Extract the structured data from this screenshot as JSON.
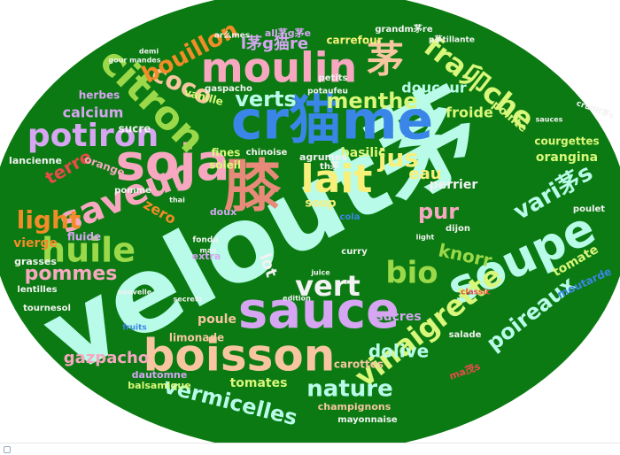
{
  "background_color": "#0b7a12",
  "palette": {
    "mint": "#b9fbe9",
    "pink": "#f7a8c0",
    "lilac": "#d6a6f2",
    "blue": "#3a86e8",
    "green": "#9bd94a",
    "lime": "#d9f77a",
    "orange": "#f28c28",
    "yellow": "#f7f07a",
    "red": "#e84b4b",
    "peach": "#f7c6a0",
    "white": "#f2f2f2",
    "salmon": "#e88a7a"
  },
  "words": [
    {
      "text": "velout茅",
      "color": "mint"
    },
    {
      "text": "cr猫me",
      "color": "blue"
    },
    {
      "text": "soja",
      "color": "pink"
    },
    {
      "text": "膝",
      "color": "salmon"
    },
    {
      "text": "sauce",
      "color": "lilac"
    },
    {
      "text": "soupe",
      "color": "mint"
    },
    {
      "text": "boisson",
      "color": "peach"
    },
    {
      "text": "moulin",
      "color": "pink"
    },
    {
      "text": "茅",
      "color": "peach"
    },
    {
      "text": "citron",
      "color": "green"
    },
    {
      "text": "saveur",
      "color": "pink"
    },
    {
      "text": "lait",
      "color": "yellow"
    },
    {
      "text": "vinaigrette",
      "color": "lime"
    },
    {
      "text": "huile",
      "color": "green"
    },
    {
      "text": "potiron",
      "color": "lilac"
    },
    {
      "text": "bio",
      "color": "green"
    },
    {
      "text": "vert",
      "color": "white"
    },
    {
      "text": "nature",
      "color": "mint"
    },
    {
      "text": "light",
      "color": "orange"
    },
    {
      "text": "fra卯che",
      "color": "lime"
    },
    {
      "text": "coco",
      "color": "peach"
    },
    {
      "text": "bouillon",
      "color": "orange"
    },
    {
      "text": "verts",
      "color": "mint"
    },
    {
      "text": "poireaux",
      "color": "mint"
    },
    {
      "text": "vermicelles",
      "color": "mint"
    },
    {
      "text": "menthe",
      "color": "lime"
    },
    {
      "text": "jus",
      "color": "yellow"
    },
    {
      "text": "pur",
      "color": "pink"
    },
    {
      "text": "vari茅s",
      "color": "mint"
    },
    {
      "text": "pommes",
      "color": "pink"
    },
    {
      "text": "gazpacho",
      "color": "pink"
    },
    {
      "text": "dolive",
      "color": "mint"
    },
    {
      "text": "knorr",
      "color": "green"
    },
    {
      "text": "terre",
      "color": "red"
    },
    {
      "text": "zero",
      "color": "orange"
    },
    {
      "text": "l茅g猫re",
      "color": "lilac"
    },
    {
      "text": "calcium",
      "color": "lilac"
    },
    {
      "text": "lot",
      "color": "white"
    },
    {
      "text": "eau",
      "color": "yellow"
    },
    {
      "text": "douceur",
      "color": "mint"
    },
    {
      "text": "froide",
      "color": "lime"
    },
    {
      "text": "courgettes",
      "color": "lime"
    },
    {
      "text": "orangina",
      "color": "lime"
    },
    {
      "text": "tomate",
      "color": "lime"
    },
    {
      "text": "tomates",
      "color": "lime"
    },
    {
      "text": "carrefour",
      "color": "yellow"
    },
    {
      "text": "moutarde",
      "color": "blue"
    },
    {
      "text": "perrier",
      "color": "white"
    },
    {
      "text": "poule",
      "color": "peach"
    },
    {
      "text": "limonade",
      "color": "peach"
    },
    {
      "text": "champignons",
      "color": "peach"
    },
    {
      "text": "soup",
      "color": "yellow"
    },
    {
      "text": "basilic",
      "color": "lime"
    },
    {
      "text": "soleil",
      "color": "lime"
    },
    {
      "text": "fines",
      "color": "lime"
    },
    {
      "text": "orange",
      "color": "pink"
    },
    {
      "text": "vierge",
      "color": "orange"
    },
    {
      "text": "sucres",
      "color": "lilac"
    },
    {
      "text": "carottes",
      "color": "peach"
    },
    {
      "text": "pointe",
      "color": "lime"
    },
    {
      "text": "vanille",
      "color": "lime"
    },
    {
      "text": "sucre",
      "color": "white"
    },
    {
      "text": "herbes",
      "color": "lilac"
    },
    {
      "text": "lancienne",
      "color": "white"
    },
    {
      "text": "fluide",
      "color": "lilac"
    },
    {
      "text": "grasses",
      "color": "white"
    },
    {
      "text": "lentilles",
      "color": "white"
    },
    {
      "text": "tournesol",
      "color": "white"
    },
    {
      "text": "balsamique",
      "color": "lime"
    },
    {
      "text": "dautomne",
      "color": "lilac"
    },
    {
      "text": "mayonnaise",
      "color": "white"
    },
    {
      "text": "salade",
      "color": "white"
    },
    {
      "text": "poulet",
      "color": "white"
    },
    {
      "text": "dijon",
      "color": "white"
    },
    {
      "text": "agrumes",
      "color": "white"
    },
    {
      "text": "petits",
      "color": "white"
    },
    {
      "text": "grandm茅re",
      "color": "white"
    },
    {
      "text": "gaspacho",
      "color": "white"
    },
    {
      "text": "chinoise",
      "color": "white"
    },
    {
      "text": "potaufeu",
      "color": "white"
    },
    {
      "text": "pomme",
      "color": "white"
    },
    {
      "text": "cola",
      "color": "blue"
    },
    {
      "text": "curry",
      "color": "white"
    },
    {
      "text": "fruits",
      "color": "blue"
    },
    {
      "text": "extra",
      "color": "lilac"
    },
    {
      "text": "doux",
      "color": "lilac"
    },
    {
      "text": "classic",
      "color": "red"
    },
    {
      "text": "crudit茅s",
      "color": "white"
    },
    {
      "text": "ar么mes",
      "color": "white"
    },
    {
      "text": "p茅tillante",
      "color": "white"
    },
    {
      "text": "th茅",
      "color": "white"
    },
    {
      "text": "all茅g茅e",
      "color": "lilac"
    },
    {
      "text": "ma茂s",
      "color": "red"
    },
    {
      "text": "thai",
      "color": "white"
    },
    {
      "text": "fondu",
      "color": "white"
    },
    {
      "text": "max",
      "color": "white"
    },
    {
      "text": "edition",
      "color": "white"
    },
    {
      "text": "secrets",
      "color": "white"
    },
    {
      "text": "juice",
      "color": "white"
    },
    {
      "text": "nouvelle",
      "color": "white"
    },
    {
      "text": "light",
      "color": "white"
    },
    {
      "text": "sauces",
      "color": "white"
    },
    {
      "text": "gour mandes",
      "color": "white"
    },
    {
      "text": "demi",
      "color": "white"
    }
  ]
}
